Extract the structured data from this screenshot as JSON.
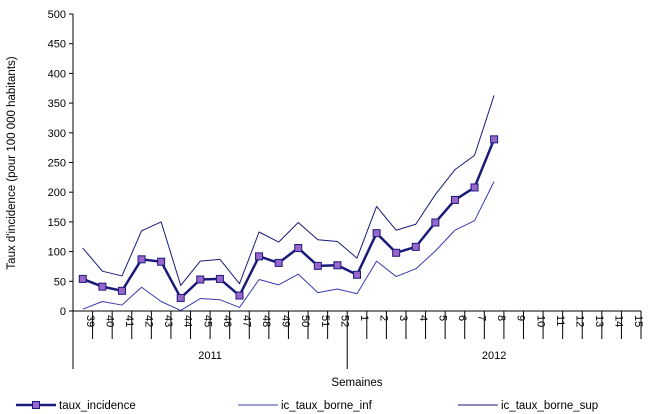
{
  "chart_data": {
    "type": "line",
    "xlabel": "Semaines",
    "ylabel": "Taux d'incidence (pour 100 000 habitants)",
    "ylim": [
      0,
      500
    ],
    "yticks": [
      "0",
      "50",
      "100",
      "150",
      "200",
      "250",
      "300",
      "350",
      "400",
      "450",
      "500"
    ],
    "categories": [
      "39",
      "40",
      "41",
      "42",
      "43",
      "44",
      "45",
      "46",
      "47",
      "48",
      "49",
      "50",
      "51",
      "52",
      "1",
      "2",
      "3",
      "4",
      "5",
      "6",
      "7",
      "8",
      "9",
      "10",
      "11",
      "12",
      "13",
      "14",
      "15"
    ],
    "year_groups": [
      {
        "label": "2011",
        "start": 0,
        "end": 13
      },
      {
        "label": "2012",
        "start": 14,
        "end": 28
      }
    ],
    "series": [
      {
        "name": "taux_incidence",
        "color": "#1a1a7a",
        "marker": "square",
        "marker_color": "#9966cc",
        "values": [
          54,
          41,
          34,
          87,
          83,
          22,
          53,
          54,
          26,
          92,
          81,
          106,
          76,
          77,
          61,
          131,
          98,
          108,
          149,
          187,
          208,
          289,
          null,
          null,
          null,
          null,
          null,
          null,
          null
        ]
      },
      {
        "name": "ic_taux_borne_inf",
        "color": "#3b3bb0",
        "marker": "none",
        "values": [
          3,
          16,
          10,
          40,
          16,
          1,
          21,
          19,
          6,
          53,
          44,
          62,
          31,
          37,
          29,
          84,
          58,
          71,
          101,
          136,
          152,
          218,
          null,
          null,
          null,
          null,
          null,
          null,
          null
        ]
      },
      {
        "name": "ic_taux_borne_sup",
        "color": "#1a1a7a",
        "marker": "none",
        "values": [
          106,
          67,
          59,
          135,
          150,
          43,
          84,
          87,
          46,
          133,
          116,
          149,
          120,
          117,
          89,
          176,
          136,
          146,
          196,
          238,
          262,
          363,
          null,
          null,
          null,
          null,
          null,
          null,
          null
        ]
      }
    ],
    "legend_position": "bottom",
    "grid": false
  }
}
